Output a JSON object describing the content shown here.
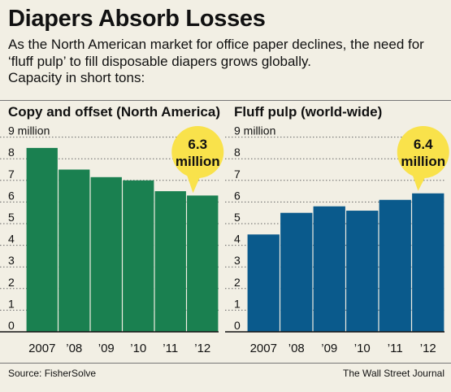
{
  "header": {
    "title": "Diapers Absorb Losses",
    "subtitle_lines": [
      "As the North American market for office paper declines, the need for",
      "‘fluff pulp’ to fill disposable diapers grows globally.",
      "Capacity in short tons:"
    ]
  },
  "footer": {
    "source": "Source: FisherSolve",
    "publisher": "The Wall Street Journal"
  },
  "colors": {
    "background": "#f2efe4",
    "copy_bar": "#1a8050",
    "fluff_bar": "#0a5a8c",
    "callout": "#f9e24b",
    "gridline": "#666666"
  },
  "chart_data": [
    {
      "type": "bar",
      "title": "Copy and offset (North America)",
      "categories": [
        "2007",
        "’08",
        "’09",
        "’10",
        "’11",
        "’12"
      ],
      "values": [
        8.5,
        7.5,
        7.15,
        7.0,
        6.5,
        6.3
      ],
      "ylim": [
        0,
        9
      ],
      "yticks": [
        "0",
        "1",
        "2",
        "3",
        "4",
        "5",
        "6",
        "7",
        "8",
        "9 million"
      ],
      "grid": true,
      "callout": {
        "line1": "6.3",
        "line2": "million",
        "category": "’12"
      }
    },
    {
      "type": "bar",
      "title": "Fluff pulp (world-wide)",
      "categories": [
        "2007",
        "’08",
        "’09",
        "’10",
        "’11",
        "’12"
      ],
      "values": [
        4.5,
        5.5,
        5.8,
        5.6,
        6.1,
        6.4
      ],
      "ylim": [
        0,
        9
      ],
      "yticks": [
        "0",
        "1",
        "2",
        "3",
        "4",
        "5",
        "6",
        "7",
        "8",
        "9 million"
      ],
      "grid": true,
      "callout": {
        "line1": "6.4",
        "line2": "million",
        "category": "’12"
      }
    }
  ]
}
